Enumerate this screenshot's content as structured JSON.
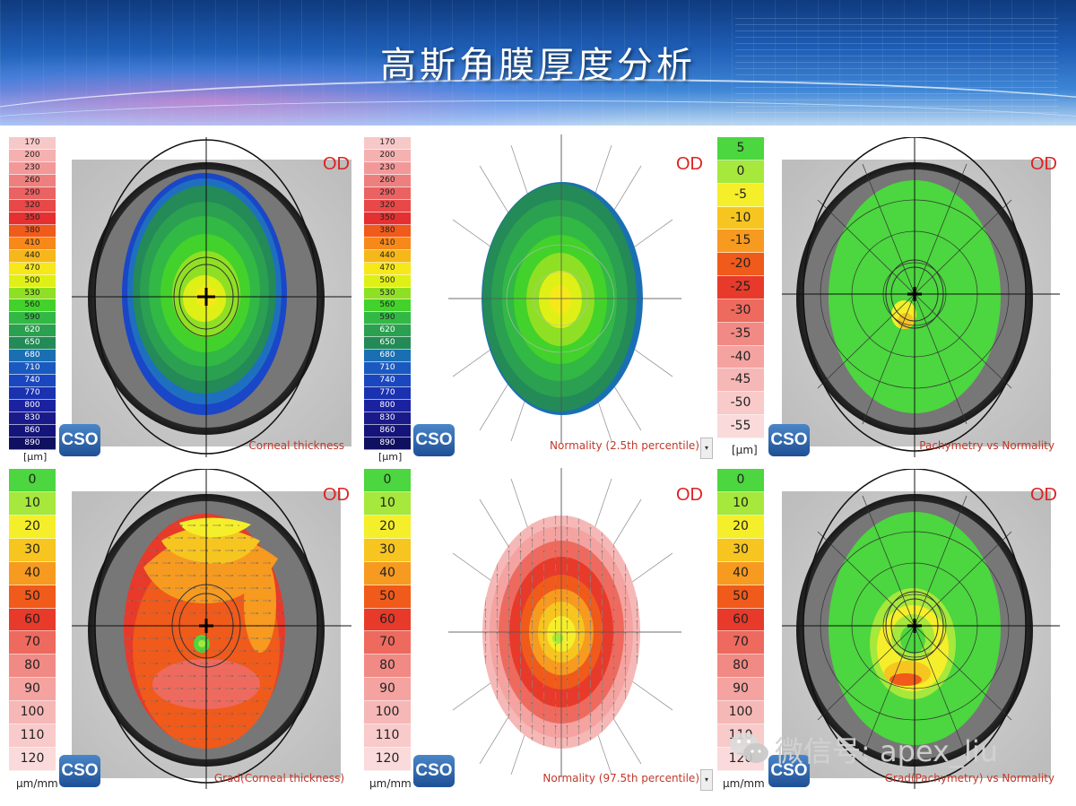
{
  "slide": {
    "title": "高斯角膜厚度分析"
  },
  "scales": {
    "thickness": {
      "unit": "[μm]",
      "values": [
        "170",
        "200",
        "230",
        "260",
        "290",
        "320",
        "350",
        "380",
        "410",
        "440",
        "470",
        "500",
        "530",
        "560",
        "590",
        "620",
        "650",
        "680",
        "710",
        "740",
        "770",
        "800",
        "830",
        "860",
        "890"
      ],
      "colors": [
        "#f7c8c8",
        "#f5b0b0",
        "#f29898",
        "#ee7f7f",
        "#ea6262",
        "#e84848",
        "#e43030",
        "#f05a1a",
        "#f7881a",
        "#f5b71a",
        "#f7e81a",
        "#dff016",
        "#8fe024",
        "#42d22b",
        "#32b845",
        "#2aa050",
        "#238a58",
        "#1a6fb3",
        "#1a5ac0",
        "#1a46c0",
        "#1a32b0",
        "#1a22a0",
        "#1a1a8a",
        "#14147a",
        "#101060"
      ]
    },
    "normality_difference": {
      "unit": "[μm]",
      "values": [
        "5",
        "0",
        "-5",
        "-10",
        "-15",
        "-20",
        "-25",
        "-30",
        "-35",
        "-40",
        "-45",
        "-50",
        "-55"
      ],
      "colors": [
        "#4cd63f",
        "#a6e83b",
        "#f5ee2a",
        "#f7c520",
        "#f79a20",
        "#f05a1a",
        "#e83a2a",
        "#ee6a5e",
        "#f18a84",
        "#f4a3a0",
        "#f6b8b6",
        "#f8caca",
        "#fadada"
      ]
    },
    "gradient": {
      "unit": "μm/mm",
      "values": [
        "0",
        "10",
        "20",
        "30",
        "40",
        "50",
        "60",
        "70",
        "80",
        "90",
        "100",
        "110",
        "120"
      ],
      "colors": [
        "#4cd63f",
        "#a6e83b",
        "#f5ee2a",
        "#f7c520",
        "#f79a20",
        "#f05a1a",
        "#e83a2a",
        "#ee6a5e",
        "#f18a84",
        "#f4a3a0",
        "#f6b8b6",
        "#f8caca",
        "#fadada"
      ]
    }
  },
  "maps": {
    "corneal_thickness": {
      "eye": "OD",
      "label": "Corneal thickness",
      "logo": "CSO"
    },
    "normality_25": {
      "eye": "OD",
      "label": "Normality (2.5th percentile)",
      "dropdown": "▾"
    },
    "pachy_vs_normality": {
      "eye": "OD",
      "label": "Pachymetry vs Normality",
      "logo": "CSO"
    },
    "grad_thickness": {
      "eye": "OD",
      "label": "Grad(Corneal thickness)",
      "logo": "CSO"
    },
    "normality_975": {
      "eye": "OD",
      "label": "Normality (97.5th percentile)",
      "dropdown": "▾"
    },
    "grad_pachy_vs_normality": {
      "eye": "OD",
      "label": "Grad(Pachymetry) vs Normality",
      "logo": "CSO"
    }
  },
  "middle_logos": {
    "top": "CSO",
    "bottom": "CSO"
  },
  "watermark": {
    "text": "微信号: apex_liu",
    "icon": "wechat-icon"
  }
}
